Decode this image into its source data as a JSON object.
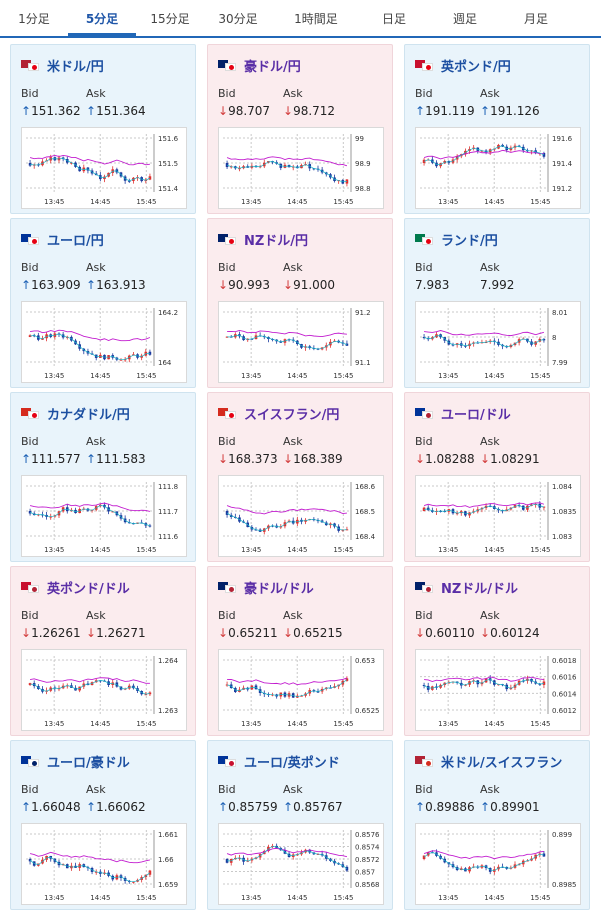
{
  "tabs": [
    "1分足",
    "5分足",
    "15分足",
    "30分足",
    "1時間足",
    "日足",
    "週足",
    "月足"
  ],
  "active_tab": 1,
  "labels": {
    "bid": "Bid",
    "ask": "Ask"
  },
  "x_ticks": [
    "13:45",
    "14:45",
    "15:45"
  ],
  "cards": [
    {
      "pair": "米ドル/円",
      "bg": "blue",
      "dir": "up",
      "bid": "151.362",
      "ask": "151.364",
      "flags": [
        "#b22234",
        "#e60012"
      ],
      "yticks": [
        "151.6",
        "151.5",
        "151.4"
      ]
    },
    {
      "pair": "豪ドル/円",
      "bg": "pink",
      "dir": "down",
      "bid": "98.707",
      "ask": "98.712",
      "flags": [
        "#012169",
        "#e60012"
      ],
      "yticks": [
        "99",
        "98.9",
        "98.8"
      ]
    },
    {
      "pair": "英ポンド/円",
      "bg": "blue",
      "dir": "up",
      "bid": "191.119",
      "ask": "191.126",
      "flags": [
        "#c8102e",
        "#e60012"
      ],
      "yticks": [
        "191.6",
        "191.4",
        "191.2"
      ]
    },
    {
      "pair": "ユーロ/円",
      "bg": "blue",
      "dir": "up",
      "bid": "163.909",
      "ask": "163.913",
      "flags": [
        "#003399",
        "#e60012"
      ],
      "yticks": [
        "164.2",
        "164"
      ]
    },
    {
      "pair": "NZドル/円",
      "bg": "pink",
      "dir": "down",
      "bid": "90.993",
      "ask": "91.000",
      "flags": [
        "#012169",
        "#e60012"
      ],
      "yticks": [
        "91.2",
        "91.1"
      ]
    },
    {
      "pair": "ランド/円",
      "bg": "blue",
      "dir": "none",
      "bid": "7.983",
      "ask": "7.992",
      "flags": [
        "#007a4d",
        "#e60012"
      ],
      "yticks": [
        "8.01",
        "8",
        "7.99"
      ]
    },
    {
      "pair": "カナダドル/円",
      "bg": "blue",
      "dir": "up",
      "bid": "111.577",
      "ask": "111.583",
      "flags": [
        "#d52b1e",
        "#e60012"
      ],
      "yticks": [
        "111.8",
        "111.7",
        "111.6"
      ]
    },
    {
      "pair": "スイスフラン/円",
      "bg": "pink",
      "dir": "down",
      "bid": "168.373",
      "ask": "168.389",
      "flags": [
        "#d52b1e",
        "#e60012"
      ],
      "yticks": [
        "168.6",
        "168.5",
        "168.4"
      ]
    },
    {
      "pair": "ユーロ/ドル",
      "bg": "pink",
      "dir": "down",
      "bid": "1.08288",
      "ask": "1.08291",
      "flags": [
        "#003399",
        "#b22234"
      ],
      "yticks": [
        "1.084",
        "1.0835",
        "1.083"
      ]
    },
    {
      "pair": "英ポンド/ドル",
      "bg": "pink",
      "dir": "down",
      "bid": "1.26261",
      "ask": "1.26271",
      "flags": [
        "#c8102e",
        "#b22234"
      ],
      "yticks": [
        "1.264",
        "1.263"
      ]
    },
    {
      "pair": "豪ドル/ドル",
      "bg": "pink",
      "dir": "down",
      "bid": "0.65211",
      "ask": "0.65215",
      "flags": [
        "#012169",
        "#b22234"
      ],
      "yticks": [
        "0.653",
        "0.6525"
      ]
    },
    {
      "pair": "NZドル/ドル",
      "bg": "pink",
      "dir": "down",
      "bid": "0.60110",
      "ask": "0.60124",
      "flags": [
        "#012169",
        "#b22234"
      ],
      "yticks": [
        "0.6018",
        "0.6016",
        "0.6014",
        "0.6012"
      ]
    },
    {
      "pair": "ユーロ/豪ドル",
      "bg": "blue",
      "dir": "up",
      "bid": "1.66048",
      "ask": "1.66062",
      "flags": [
        "#003399",
        "#012169"
      ],
      "yticks": [
        "1.661",
        "1.66",
        "1.659"
      ]
    },
    {
      "pair": "ユーロ/英ポンド",
      "bg": "blue",
      "dir": "up",
      "bid": "0.85759",
      "ask": "0.85767",
      "flags": [
        "#003399",
        "#c8102e"
      ],
      "yticks": [
        "0.8576",
        "0.8574",
        "0.8572",
        "0.857",
        "0.8568"
      ]
    },
    {
      "pair": "米ドル/スイスフラン",
      "bg": "blue",
      "dir": "up",
      "bid": "0.89886",
      "ask": "0.89901",
      "flags": [
        "#b22234",
        "#d52b1e"
      ],
      "yticks": [
        "0.899",
        "0.8985"
      ]
    }
  ],
  "colors": {
    "up_candle": "#e0302e",
    "down_candle": "#1a3a9e",
    "ma_line": "#c21ccf",
    "ma_line2": "#16b7c9",
    "grid": "#c9c9c9"
  }
}
